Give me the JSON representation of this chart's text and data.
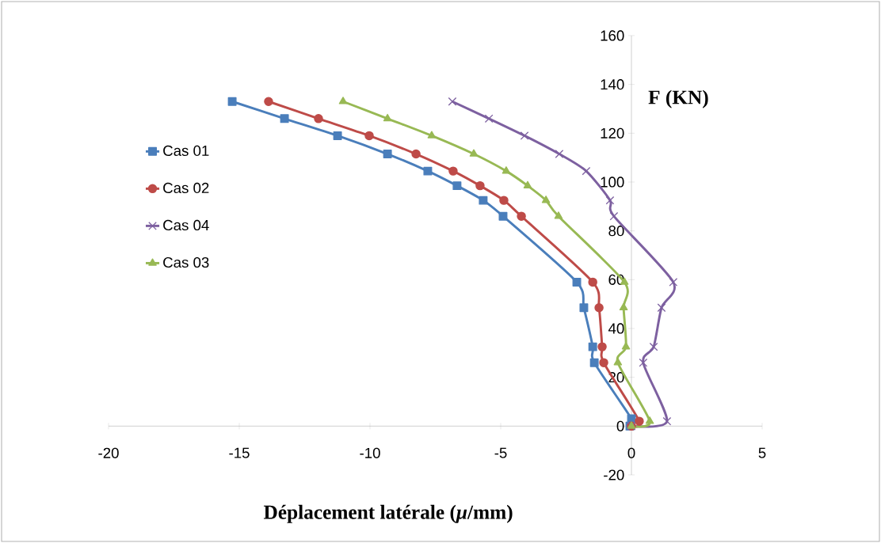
{
  "chart_data": {
    "type": "line",
    "xlabel": "Déplacement latérale  (*μ*/mm)",
    "ylabel": "F (KN)",
    "xlim": [
      -20,
      5
    ],
    "ylim": [
      -20,
      160
    ],
    "xticks": [
      -20,
      -15,
      -10,
      -5,
      0,
      5
    ],
    "yticks": [
      -20,
      0,
      20,
      40,
      60,
      80,
      100,
      120,
      140,
      160
    ],
    "grid": false,
    "legend": "left",
    "line_style": "solid",
    "series": [
      {
        "name": "Cas 01",
        "color": "#4a7ebb",
        "marker": "square",
        "x": [
          -15.27,
          -13.27,
          -11.24,
          -9.33,
          -7.79,
          -6.67,
          -5.67,
          -4.91,
          -2.09,
          -1.82,
          -1.48,
          -1.42,
          0.0,
          -0.06
        ],
        "values": [
          133,
          126,
          119,
          111.5,
          104.5,
          98.5,
          92.5,
          86,
          59,
          48.5,
          32.5,
          26,
          3,
          0
        ]
      },
      {
        "name": "Cas 02",
        "color": "#be4b48",
        "marker": "circle",
        "x": [
          -13.88,
          -11.97,
          -10.03,
          -8.24,
          -6.82,
          -5.79,
          -4.88,
          -4.21,
          -1.48,
          -1.24,
          -1.12,
          -1.06,
          0.3,
          0.0
        ],
        "values": [
          133,
          126,
          119,
          111.5,
          104.5,
          98.5,
          92.5,
          86,
          59,
          48.5,
          32.5,
          26,
          2,
          0
        ]
      },
      {
        "name": "Cas 04",
        "color": "#7d60a0",
        "marker": "cross",
        "x": [
          -6.85,
          -5.45,
          -4.09,
          -2.76,
          -1.73,
          -0.82,
          -0.67,
          1.6,
          1.15,
          0.85,
          0.45,
          1.36,
          0.0
        ],
        "values": [
          133,
          126,
          119,
          111.5,
          104.5,
          92.5,
          86,
          59,
          48.5,
          32.5,
          26,
          2,
          0
        ]
      },
      {
        "name": "Cas 03",
        "color": "#98b954",
        "marker": "triangle",
        "x": [
          -11.03,
          -9.33,
          -7.64,
          -6.03,
          -4.79,
          -3.97,
          -3.27,
          -2.79,
          -0.27,
          -0.3,
          -0.21,
          -0.52,
          0.7,
          0.0
        ],
        "values": [
          133,
          126,
          119,
          111.5,
          104.5,
          98.5,
          92.5,
          86,
          59,
          48.5,
          32.5,
          26,
          2,
          0
        ]
      }
    ]
  }
}
